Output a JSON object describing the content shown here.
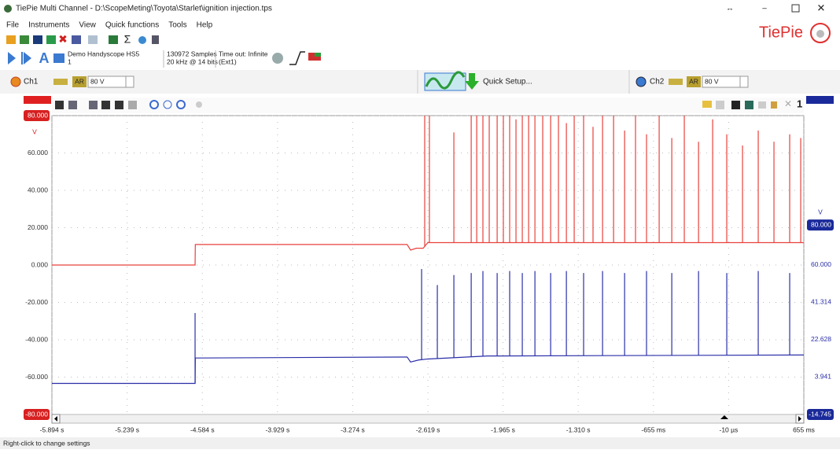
{
  "window": {
    "title": "TiePie Multi Channel - D:\\ScopeMeting\\Toyota\\Starlet\\ignition injection.tps"
  },
  "menu": [
    "File",
    "Instruments",
    "View",
    "Quick functions",
    "Tools",
    "Help"
  ],
  "logo": "TiePie",
  "toolbar": {
    "device": "Demo Handyscope HS5",
    "device_number": "1",
    "samples": "130972 Samples",
    "rate": "20 kHz @ 14 bits",
    "timeout": "Time out: Infinite",
    "trigger_source": "(Ext1)"
  },
  "channel_bar": {
    "ch1": {
      "label": "Ch1",
      "auto_range": "AR",
      "range": "80 V"
    },
    "quick_setup": "Quick Setup...",
    "ch2": {
      "label": "Ch2",
      "auto_range": "AR",
      "range": "80 V"
    }
  },
  "scope": {
    "zoom_label": "1",
    "y_unit": "V",
    "y2_unit": "V",
    "grid": true,
    "xlim": [
      -5.894,
      0.655
    ],
    "xticks": [
      {
        "value": -5.894,
        "label": "-5.894 s"
      },
      {
        "value": -5.239,
        "label": "-5.239 s"
      },
      {
        "value": -4.584,
        "label": "-4.584 s"
      },
      {
        "value": -3.929,
        "label": "-3.929 s"
      },
      {
        "value": -3.274,
        "label": "-3.274 s"
      },
      {
        "value": -2.619,
        "label": "-2.619 s"
      },
      {
        "value": -1.965,
        "label": "-1.965 s"
      },
      {
        "value": -1.31,
        "label": "-1.310 s"
      },
      {
        "value": -0.655,
        "label": "-655 ms"
      },
      {
        "value": -1e-05,
        "label": "-10 µs"
      },
      {
        "value": 0.655,
        "label": "655 ms"
      }
    ],
    "ylim": [
      -80,
      80
    ],
    "yticks": [
      {
        "value": 80,
        "label": "80.000"
      },
      {
        "value": 60,
        "label": "60.000"
      },
      {
        "value": 40,
        "label": "40.000"
      },
      {
        "value": 20,
        "label": "20.000"
      },
      {
        "value": 0,
        "label": "0.000"
      },
      {
        "value": -20,
        "label": "-20.000"
      },
      {
        "value": -40,
        "label": "-40.000"
      },
      {
        "value": -60,
        "label": "-60.000"
      },
      {
        "value": -80,
        "label": "-80.000"
      }
    ],
    "y2lim": [
      -14.745,
      134.73
    ],
    "y2ticks": [
      {
        "value": 80,
        "label": "80.000"
      },
      {
        "value": 60,
        "label": "60.000"
      },
      {
        "value": 41.314,
        "label": "41.314"
      },
      {
        "value": 22.628,
        "label": "22.628"
      },
      {
        "value": 3.941,
        "label": "3.941"
      },
      {
        "value": -14.745,
        "label": "-14.745"
      }
    ],
    "series": [
      {
        "name": "Ch1",
        "color": "#e8413c",
        "x": [
          -5.894,
          -4.647,
          -4.645,
          -2.8,
          -2.77,
          -2.72,
          -2.66,
          -2.62,
          0.655
        ],
        "values": [
          0,
          0,
          11,
          11,
          8,
          9,
          9,
          12,
          12
        ],
        "spikes": {
          "x": [
            -2.647,
            -2.606,
            -2.393,
            -2.242,
            -2.194,
            -2.14,
            -2.085,
            -2.016,
            -1.962,
            -1.907,
            -1.852,
            -1.797,
            -1.742,
            -1.687,
            -1.619,
            -1.55,
            -1.482,
            -1.413,
            -1.345,
            -1.263,
            -1.181,
            -1.098,
            -1.002,
            -0.906,
            -0.811,
            -0.715,
            -0.605,
            -0.495,
            -0.386,
            -0.262,
            -0.139,
            -0.016,
            0.121,
            0.258,
            0.395,
            0.532,
            0.628
          ],
          "values": [
            80,
            80,
            71,
            80,
            80,
            80,
            80,
            80,
            80,
            80,
            78,
            80,
            80,
            80,
            80,
            80,
            80,
            76,
            80,
            80,
            74,
            80,
            80,
            72,
            80,
            70,
            80,
            68,
            80,
            66,
            78,
            70,
            64,
            72,
            66,
            70,
            68
          ]
        }
      },
      {
        "name": "Ch2",
        "color": "#2b2fa8",
        "axis": "y2",
        "x": [
          -5.894,
          -4.647,
          -4.645,
          -2.8,
          -2.77,
          -2.7,
          -2.62,
          -2.1,
          0.655
        ],
        "values": [
          0.8,
          0.8,
          13.5,
          14,
          11.5,
          12.5,
          13,
          14.5,
          15
        ],
        "spikes": {
          "x": [
            -4.647,
            -2.674,
            -2.537,
            -2.393,
            -2.242,
            -2.14,
            -2.016,
            -1.907,
            -1.797,
            -1.687,
            -1.55,
            -1.413,
            -1.263,
            -1.098,
            -0.906,
            -0.715,
            -0.495,
            -0.262,
            -0.016,
            0.258,
            0.532
          ],
          "values": [
            36,
            58,
            50,
            55,
            56,
            57,
            56,
            57,
            56,
            57,
            56,
            57,
            56,
            57,
            56,
            57,
            56,
            57,
            56,
            57,
            56
          ]
        }
      }
    ]
  },
  "status": "Right-click to change settings"
}
